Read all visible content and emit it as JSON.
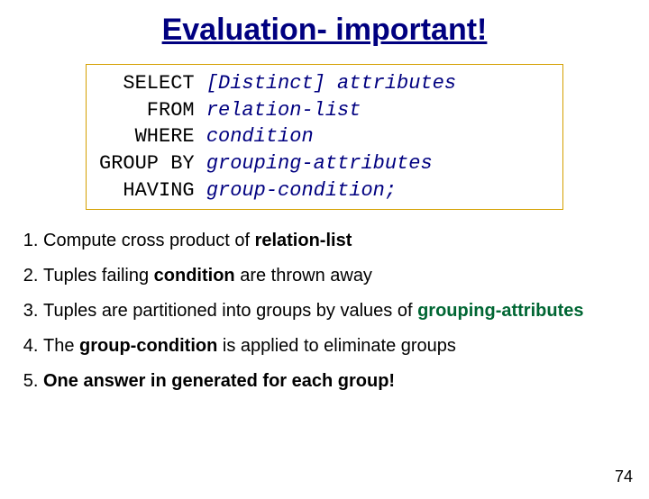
{
  "title": "Evaluation- important!",
  "sql": {
    "rows": [
      {
        "kw": "  SELECT",
        "rest": " [Distinct] attributes"
      },
      {
        "kw": "    FROM",
        "rest": " relation-list"
      },
      {
        "kw": "   WHERE",
        "rest": " condition"
      },
      {
        "kw": "GROUP BY",
        "rest": " grouping-attributes"
      },
      {
        "kw": "  HAVING",
        "rest": " group-condition;"
      }
    ]
  },
  "steps": {
    "s1a": "Compute cross product of ",
    "s1b": "relation-list",
    "s2a": "Tuples failing ",
    "s2b": "condition",
    "s2c": " are thrown away",
    "s3a": "Tuples are partitioned into groups by values of ",
    "s3b": "grouping-attributes",
    "s4a": "The ",
    "s4b": "group-condition",
    "s4c": " is applied to eliminate groups",
    "s5a": "One answer in generated for each group!"
  },
  "pagenum": "74",
  "colors": {
    "title": "#000080",
    "attr": "#000080",
    "green": "#006633",
    "box_border": "#d4a000"
  }
}
